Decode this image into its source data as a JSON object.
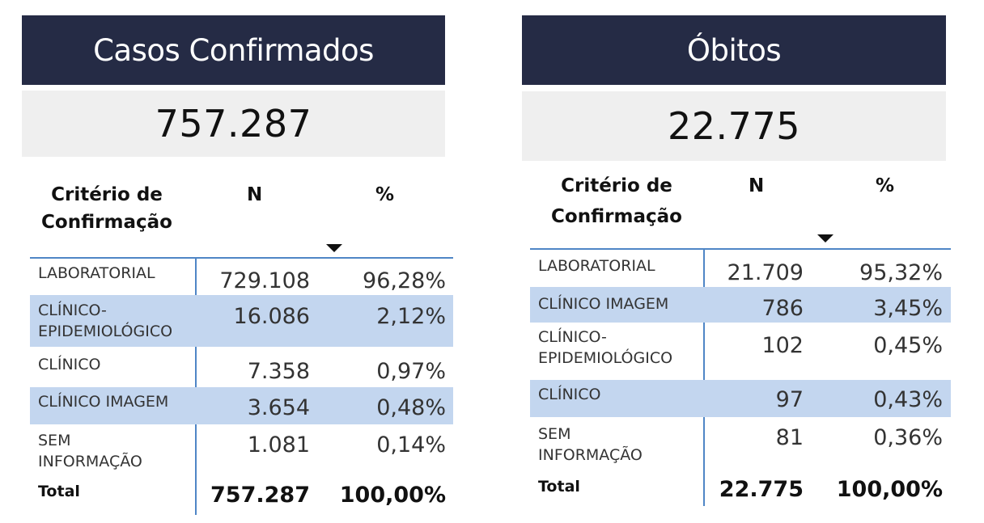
{
  "left": {
    "title": "Casos Confirmados",
    "kpi": "757.287",
    "header": {
      "criterion": "Critério de Confirmação",
      "n": "N",
      "pct": "%"
    },
    "rows": [
      {
        "label": "LABORATORIAL",
        "n": "729.108",
        "pct": "96,28%"
      },
      {
        "label": "CLÍNICO- EPIDEMIOLÓGICO",
        "n": "16.086",
        "pct": "2,12%"
      },
      {
        "label": "CLÍNICO",
        "n": "7.358",
        "pct": "0,97%"
      },
      {
        "label": "CLÍNICO IMAGEM",
        "n": "3.654",
        "pct": "0,48%"
      },
      {
        "label": "SEM INFORMAÇÃO",
        "n": "1.081",
        "pct": "0,14%"
      }
    ],
    "total": {
      "label": "Total",
      "n": "757.287",
      "pct": "100,00%"
    }
  },
  "right": {
    "title": "Óbitos",
    "kpi": "22.775",
    "header": {
      "criterion": "Critério de Confirmação",
      "n": "N",
      "pct": "%"
    },
    "rows": [
      {
        "label": "LABORATORIAL",
        "n": "21.709",
        "pct": "95,32%"
      },
      {
        "label": "CLÍNICO IMAGEM",
        "n": "786",
        "pct": "3,45%"
      },
      {
        "label": "CLÍNICO- EPIDEMIOLÓGICO",
        "n": "102",
        "pct": "0,45%"
      },
      {
        "label": "CLÍNICO",
        "n": "97",
        "pct": "0,43%"
      },
      {
        "label": "SEM INFORMAÇÃO",
        "n": "81",
        "pct": "0,36%"
      }
    ],
    "total": {
      "label": "Total",
      "n": "22.775",
      "pct": "100,00%"
    }
  },
  "colors": {
    "title_bg": "#252b45",
    "kpi_bg": "#efefef",
    "row_alt": "#c3d6ef",
    "rule": "#4f86c6"
  },
  "icons": {
    "sort": "sort-descending-icon"
  }
}
